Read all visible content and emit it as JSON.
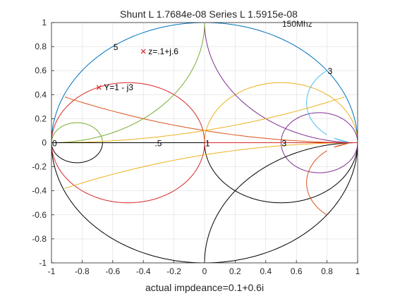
{
  "chart_data": {
    "type": "line",
    "title": "Shunt L 1.7684e-08  Series L 1.5915e-08",
    "subtitle": "150Mhz",
    "xlabel": "actual impdeance=0.1+0.6i",
    "ylabel": "",
    "xlim": [
      -1,
      1
    ],
    "ylim": [
      -1,
      1
    ],
    "grid": true,
    "x_ticks": [
      "-1",
      "-0.8",
      "-0.6",
      "-0.4",
      "-0.2",
      "0",
      "0.2",
      "0.4",
      "0.6",
      "0.8",
      "1"
    ],
    "y_ticks": [
      "-1",
      "-0.8",
      "-0.6",
      "-0.4",
      "-0.2",
      "0",
      "0.2",
      "0.4",
      "0.6",
      "0.8",
      "1"
    ],
    "impedance_resistance_circles": [
      0,
      1,
      3
    ],
    "impedance_reactance_arcs": [
      1,
      -1,
      -0.2
    ],
    "admittance_conductance_circles": [
      0,
      5
    ],
    "series": [
      {
        "kind": "resistance-circle",
        "value": 0,
        "color": "#0072bd",
        "arc": "upper"
      },
      {
        "kind": "resistance-circle",
        "value": 0,
        "color": "#000000",
        "arc": "lower"
      },
      {
        "kind": "resistance-circle",
        "value": 1,
        "color": "#000000",
        "arc": "lower"
      },
      {
        "kind": "resistance-circle",
        "value": 1,
        "color": "#edb120",
        "arc": "upper"
      },
      {
        "kind": "resistance-circle",
        "value": 3,
        "color": "#7e2f8e",
        "arc": "full"
      },
      {
        "kind": "conductance-circle",
        "value": 5,
        "color": "#000000",
        "arc": "lower"
      },
      {
        "kind": "conductance-circle",
        "value": 5,
        "color": "#77ac30",
        "arc": "upper"
      },
      {
        "kind": "conductance-circle",
        "value": 1,
        "color": "#d62728",
        "arc": "full"
      },
      {
        "kind": "reactance-arc",
        "value": 1,
        "color": "#7e2f8e"
      },
      {
        "kind": "reactance-arc",
        "value": -1,
        "color": "#000000"
      },
      {
        "kind": "reactance-arc",
        "value": -0.2,
        "color": "#edb120"
      },
      {
        "kind": "reactance-arc",
        "value": 3,
        "color": "#4dbeee"
      },
      {
        "kind": "reactance-arc",
        "value": -3,
        "color": "#d95319"
      },
      {
        "kind": "reactance-arc",
        "value": 0.2,
        "color": "#d95319"
      },
      {
        "kind": "susceptance-arc",
        "value": 1,
        "color": "#77ac30"
      },
      {
        "kind": "susceptance-arc",
        "value": 0.2,
        "color": "#edb120"
      },
      {
        "kind": "real-axis",
        "color": "#000000"
      },
      {
        "kind": "real-axis-segment",
        "from": 0,
        "to": 1,
        "color": "#d62728"
      }
    ],
    "arc_labels": [
      {
        "text": "0",
        "x": -1,
        "y": 0
      },
      {
        "text": ".5",
        "x": -0.33,
        "y": 0
      },
      {
        "text": "1",
        "x": 0,
        "y": 0
      },
      {
        "text": "3",
        "x": 0.5,
        "y": 0
      },
      {
        "text": "5",
        "x": -0.6,
        "y": 0.8
      },
      {
        "text": "3",
        "x": 0.8,
        "y": 0.6
      }
    ],
    "markers": [
      {
        "label": "z=.1+j.6",
        "x": -0.4,
        "y": 0.76,
        "color": "#d62728",
        "symbol": "x"
      },
      {
        "label": "Y=1 - j3",
        "x": -0.69,
        "y": 0.46,
        "color": "#d62728",
        "symbol": "x"
      }
    ]
  }
}
